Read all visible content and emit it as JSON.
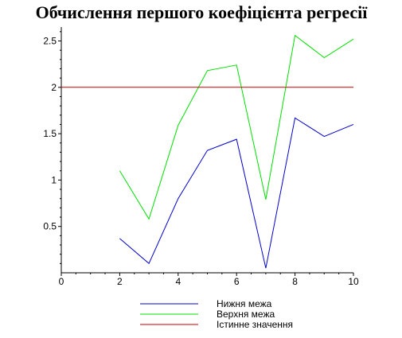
{
  "chart_data": {
    "type": "line",
    "title": "Обчислення першого коефіцієнта регресії",
    "xlabel": "",
    "ylabel": "",
    "xlim": [
      0,
      10
    ],
    "ylim": [
      0,
      2.65
    ],
    "x_ticks": [
      0,
      2,
      4,
      6,
      8,
      10
    ],
    "y_ticks": [
      0.5,
      1,
      1.5,
      2,
      2.5
    ],
    "y_tick_labels": [
      "0.5",
      "1",
      "1.5",
      "2",
      "2.5"
    ],
    "grid": false,
    "legend_position": "bottom",
    "series": [
      {
        "name": "Нижня межа",
        "color": "#0000cc",
        "x": [
          2,
          3,
          4,
          5,
          6,
          7,
          8,
          9,
          10
        ],
        "values": [
          0.37,
          0.1,
          0.8,
          1.32,
          1.44,
          0.05,
          1.67,
          1.47,
          1.6
        ]
      },
      {
        "name": "Верхня межа",
        "color": "#00e000",
        "x": [
          2,
          3,
          4,
          5,
          6,
          7,
          8,
          9,
          10
        ],
        "values": [
          1.1,
          0.58,
          1.59,
          2.18,
          2.24,
          0.79,
          2.56,
          2.32,
          2.52
        ]
      },
      {
        "name": "Істинне значення",
        "color": "#cc0000",
        "x": [
          0,
          10
        ],
        "values": [
          2,
          2
        ]
      }
    ]
  }
}
